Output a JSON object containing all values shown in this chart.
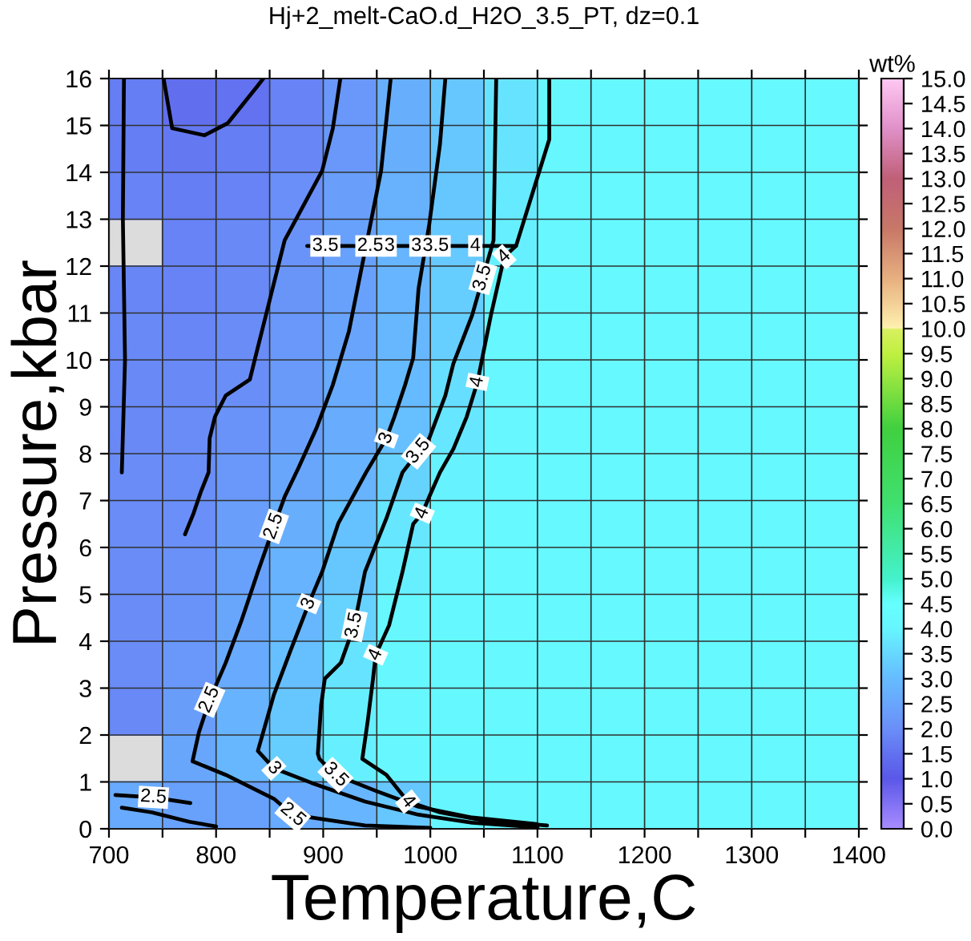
{
  "chart_data": {
    "type": "scatter",
    "title": "Hj+2_melt-CaO.d_H2O_3.5_PT, dz=0.1",
    "xlabel": "Temperature,C",
    "ylabel": "Pressure,kbar",
    "clabel": "wt%",
    "clim": [
      0,
      15
    ],
    "cticks": [
      {
        "value": 0,
        "label": "0.0"
      },
      0.5,
      {
        "value": 1,
        "label": "1.0"
      },
      1.5,
      {
        "value": 2,
        "label": "2.0"
      },
      2.5,
      {
        "value": 3,
        "label": "3.0"
      },
      3.5,
      {
        "value": 4,
        "label": "4.0"
      },
      4.5,
      {
        "value": 5,
        "label": "5.0"
      },
      5.5,
      {
        "value": 6,
        "label": "6.0"
      },
      6.5,
      {
        "value": 7,
        "label": "7.0"
      },
      7.5,
      {
        "value": 8,
        "label": "8.0"
      },
      8.5,
      {
        "value": 9,
        "label": "9.0"
      },
      9.5,
      {
        "value": 10,
        "label": "10.0"
      },
      10.5,
      {
        "value": 11,
        "label": "11.0"
      },
      11.5,
      {
        "value": 12,
        "label": "12.0"
      },
      12.5,
      {
        "value": 13,
        "label": "13.0"
      },
      13.5,
      {
        "value": 14,
        "label": "14.0"
      },
      14.5,
      {
        "value": 15,
        "label": "15.0"
      }
    ],
    "xlim": [
      700,
      1400
    ],
    "xticks": [
      700,
      {
        "value": 750,
        "label": null
      },
      800,
      {
        "value": 850,
        "label": null
      },
      900,
      {
        "value": 950,
        "label": null
      },
      1000,
      {
        "value": 1050,
        "label": null
      },
      1100,
      {
        "value": 1150,
        "label": null
      },
      1200,
      {
        "value": 1250,
        "label": null
      },
      1300,
      {
        "value": 1350,
        "label": null
      },
      1400
    ],
    "ylim": [
      0,
      16
    ],
    "yticks": [
      0,
      1,
      2,
      3,
      4,
      5,
      6,
      7,
      8,
      9,
      10,
      11,
      12,
      13,
      14,
      15,
      16
    ],
    "grid": true,
    "x": [
      725,
      775,
      825,
      875,
      925,
      975,
      1025,
      1075,
      1125,
      1175,
      1225,
      1275,
      1325,
      1375,
      725,
      775,
      825,
      875,
      925,
      975,
      1025,
      1075,
      1125,
      1175,
      1225,
      1275,
      1325,
      1375,
      725,
      775,
      825,
      875,
      925,
      975,
      1025,
      1075,
      1125,
      1175,
      1225,
      1275,
      1325,
      1375,
      775,
      825,
      875,
      925,
      975,
      1025,
      1075,
      1125,
      1175,
      1225,
      1275,
      1325,
      1375,
      725,
      775,
      825,
      875,
      925,
      975,
      1025,
      1075,
      1125,
      1175,
      1225,
      1275,
      1325,
      1375,
      725,
      775,
      825,
      875,
      925,
      975,
      1025,
      1075,
      1125,
      1175,
      1225,
      1275,
      1325,
      1375,
      725,
      775,
      825,
      875,
      925,
      975,
      1025,
      1075,
      1125,
      1175,
      1225,
      1275,
      1325,
      1375,
      725,
      775,
      825,
      875,
      925,
      975,
      1025,
      1075,
      1125,
      1175,
      1225,
      1275,
      1325,
      1375,
      725,
      775,
      825,
      875,
      925,
      975,
      1025,
      1075,
      1125,
      1175,
      1225,
      1275,
      1325,
      1375,
      725,
      775,
      825,
      875,
      925,
      975,
      1025,
      1075,
      1125,
      1175,
      1225,
      1275,
      1325,
      1375,
      725,
      775,
      825,
      875,
      925,
      975,
      1025,
      1075,
      1125,
      1175,
      1225,
      1275,
      1325,
      1375,
      725,
      775,
      825,
      875,
      925,
      975,
      1025,
      1075,
      1125,
      1175,
      1225,
      1275,
      1325,
      1375,
      725,
      775,
      825,
      875,
      925,
      975,
      1025,
      1075,
      1125,
      1175,
      1225,
      1275,
      1325,
      1375,
      725,
      775,
      825,
      875,
      925,
      975,
      1025,
      1075,
      1125,
      1175,
      1225,
      1275,
      1325,
      1375,
      775,
      825,
      875,
      925,
      975,
      1025,
      1075,
      1125,
      1175,
      1225,
      1275,
      1325,
      1375,
      725,
      775,
      825,
      875,
      925,
      975,
      1025,
      1075,
      1125,
      1175,
      1225,
      1275,
      1325,
      1375
    ],
    "values": [
      15.5,
      15.5,
      15.5,
      15.5,
      15.5,
      15.5,
      15.5,
      15.5,
      15.5,
      15.5,
      15.5,
      15.5,
      15.5,
      15.5,
      14.5,
      14.5,
      14.5,
      14.5,
      14.5,
      14.5,
      14.5,
      14.5,
      14.5,
      14.5,
      14.5,
      14.5,
      14.5,
      14.5,
      13.5,
      13.5,
      13.5,
      13.5,
      13.5,
      13.5,
      13.5,
      13.5,
      13.5,
      13.5,
      13.5,
      13.5,
      13.5,
      13.5,
      12.5,
      12.5,
      12.5,
      12.5,
      12.5,
      12.5,
      12.5,
      12.5,
      12.5,
      12.5,
      12.5,
      12.5,
      12.5,
      11.5,
      11.5,
      11.5,
      11.5,
      11.5,
      11.5,
      11.5,
      11.5,
      11.5,
      11.5,
      11.5,
      11.5,
      11.5,
      11.5,
      10.5,
      10.5,
      10.5,
      10.5,
      10.5,
      10.5,
      10.5,
      10.5,
      10.5,
      10.5,
      10.5,
      10.5,
      10.5,
      10.5,
      9.5,
      9.5,
      9.5,
      9.5,
      9.5,
      9.5,
      9.5,
      9.5,
      9.5,
      9.5,
      9.5,
      9.5,
      9.5,
      9.5,
      8.5,
      8.5,
      8.5,
      8.5,
      8.5,
      8.5,
      8.5,
      8.5,
      8.5,
      8.5,
      8.5,
      8.5,
      8.5,
      8.5,
      7.5,
      7.5,
      7.5,
      7.5,
      7.5,
      7.5,
      7.5,
      7.5,
      7.5,
      7.5,
      7.5,
      7.5,
      7.5,
      7.5,
      6.5,
      6.5,
      6.5,
      6.5,
      6.5,
      6.5,
      6.5,
      6.5,
      6.5,
      6.5,
      6.5,
      6.5,
      6.5,
      6.5,
      5.5,
      5.5,
      5.5,
      5.5,
      5.5,
      5.5,
      5.5,
      5.5,
      5.5,
      5.5,
      5.5,
      5.5,
      5.5,
      5.5,
      4.5,
      4.5,
      4.5,
      4.5,
      4.5,
      4.5,
      4.5,
      4.5,
      4.5,
      4.5,
      4.5,
      4.5,
      4.5,
      4.5,
      3.5,
      3.5,
      3.5,
      3.5,
      3.5,
      3.5,
      3.5,
      3.5,
      3.5,
      3.5,
      3.5,
      3.5,
      3.5,
      3.5,
      2.5,
      2.5,
      2.5,
      2.5,
      2.5,
      2.5,
      2.5,
      2.5,
      2.5,
      2.5,
      2.5,
      2.5,
      2.5,
      2.5,
      1.5,
      1.5,
      1.5,
      1.5,
      1.5,
      1.5,
      1.5,
      1.5,
      1.5,
      1.5,
      1.5,
      1.5,
      1.5,
      0.5,
      0.5,
      0.5,
      0.5,
      0.5,
      0.5,
      0.5,
      0.5,
      0.5,
      0.5,
      0.5,
      0.5,
      0.5,
      0.5
    ],
    "cvalues": [
      1.7,
      1.45,
      1.5,
      1.8,
      2.2,
      2.7,
      3.2,
      3.7,
      4.05,
      4.1,
      4.2,
      4.2,
      4.2,
      4.2,
      1.7,
      1.6,
      1.7,
      1.85,
      2.2,
      2.7,
      3.2,
      3.7,
      4.05,
      4.1,
      4.2,
      4.2,
      4.2,
      4.2,
      1.8,
      1.7,
      1.8,
      2.0,
      2.35,
      2.75,
      3.2,
      3.8,
      4.05,
      4.15,
      4.2,
      4.2,
      4.2,
      4.2,
      1.8,
      1.9,
      2.1,
      2.4,
      2.85,
      3.25,
      3.9,
      4.05,
      4.2,
      4.2,
      4.2,
      4.2,
      4.2,
      1.85,
      1.8,
      1.9,
      2.15,
      2.4,
      2.85,
      3.3,
      4.0,
      4.1,
      4.2,
      4.2,
      4.2,
      4.2,
      4.2,
      1.9,
      1.85,
      1.95,
      2.2,
      2.45,
      2.9,
      3.35,
      4.05,
      4.2,
      4.2,
      4.2,
      4.2,
      4.2,
      4.2,
      1.9,
      1.9,
      1.98,
      2.25,
      2.6,
      2.95,
      3.6,
      4.05,
      4.2,
      4.2,
      4.2,
      4.2,
      4.2,
      4.2,
      1.9,
      1.95,
      2.1,
      2.35,
      2.65,
      3.05,
      3.75,
      4.05,
      4.2,
      4.2,
      4.2,
      4.2,
      4.2,
      4.2,
      1.95,
      1.98,
      2.2,
      2.5,
      2.8,
      3.4,
      3.95,
      4.1,
      4.2,
      4.2,
      4.2,
      4.2,
      4.2,
      4.2,
      1.95,
      2.0,
      2.35,
      2.7,
      3.1,
      3.75,
      4.05,
      4.2,
      4.2,
      4.2,
      4.2,
      4.2,
      4.2,
      4.2,
      1.95,
      2.05,
      2.4,
      2.8,
      3.2,
      3.9,
      4.05,
      4.2,
      4.2,
      4.2,
      4.2,
      4.2,
      4.2,
      4.2,
      1.95,
      2.1,
      2.5,
      2.9,
      3.4,
      4.05,
      4.1,
      4.2,
      4.2,
      4.2,
      4.2,
      4.2,
      4.2,
      4.2,
      1.95,
      2.2,
      2.6,
      3.05,
      3.7,
      4.05,
      4.1,
      4.2,
      4.2,
      4.2,
      4.2,
      4.2,
      4.2,
      4.2,
      1.9,
      2.3,
      2.8,
      3.2,
      3.9,
      4.05,
      4.1,
      4.2,
      4.2,
      4.2,
      4.2,
      4.2,
      4.2,
      4.2,
      2.5,
      2.9,
      3.3,
      3.9,
      4.05,
      4.1,
      4.2,
      4.2,
      4.2,
      4.2,
      4.2,
      4.2,
      4.2,
      2.6,
      2.4,
      2.4,
      2.6,
      2.85,
      3.2,
      4.0,
      4.05,
      4.2,
      4.2,
      4.2,
      4.2,
      4.2,
      4.2
    ],
    "colors": [
      "#657ef3",
      "#616fef",
      "#6272f0",
      "#6783f5",
      "#6998fa",
      "#67affd",
      "#66c7ff",
      "#66e4ff",
      "#66f7ff",
      "#66f8ff",
      "#66faff",
      "#66faff",
      "#66faff",
      "#66faff",
      "#657ef3",
      "#6478f2",
      "#657ef3",
      "#6886f6",
      "#6998fa",
      "#67affd",
      "#66c7ff",
      "#66e4ff",
      "#66f7ff",
      "#66f8ff",
      "#66faff",
      "#66faff",
      "#66faff",
      "#66faff",
      "#6783f5",
      "#657ef3",
      "#6783f5",
      "#6a8ff8",
      "#699ffb",
      "#67b1fe",
      "#66c7ff",
      "#66eaff",
      "#66f7ff",
      "#66f9ff",
      "#66faff",
      "#66faff",
      "#66faff",
      "#66faff",
      "#6783f5",
      "#6889f6",
      "#6a94f9",
      "#68a1fb",
      "#67b5fe",
      "#66caff",
      "#66f0ff",
      "#66f7ff",
      "#66faff",
      "#66faff",
      "#66faff",
      "#66faff",
      "#66faff",
      "#6886f6",
      "#6783f5",
      "#6889f6",
      "#6996f9",
      "#68a1fb",
      "#67b5fe",
      "#66cdff",
      "#66f6ff",
      "#66f8ff",
      "#66faff",
      "#66faff",
      "#66faff",
      "#66faff",
      "#66faff",
      "#6889f6",
      "#6886f6",
      "#698cf7",
      "#6998fa",
      "#68a4fc",
      "#66b8fe",
      "#66d0ff",
      "#66f7ff",
      "#66faff",
      "#66faff",
      "#66faff",
      "#66faff",
      "#66faff",
      "#66faff",
      "#6889f6",
      "#6889f6",
      "#6a8ef8",
      "#699bfa",
      "#68aafd",
      "#66baff",
      "#66deff",
      "#66f7ff",
      "#66faff",
      "#66faff",
      "#66faff",
      "#66faff",
      "#66faff",
      "#66faff",
      "#6889f6",
      "#698cf7",
      "#6a94f9",
      "#699ffb",
      "#67adfd",
      "#66bfff",
      "#66e7ff",
      "#66f7ff",
      "#66faff",
      "#66faff",
      "#66faff",
      "#66faff",
      "#66faff",
      "#66faff",
      "#698cf7",
      "#6a8ef8",
      "#6998fa",
      "#68a6fc",
      "#67b3fe",
      "#66d2ff",
      "#66f3ff",
      "#66f8ff",
      "#66faff",
      "#66faff",
      "#66faff",
      "#66faff",
      "#66faff",
      "#66faff",
      "#698cf7",
      "#6a8ff8",
      "#699ffb",
      "#67affd",
      "#66c2ff",
      "#66e7ff",
      "#66f7ff",
      "#66faff",
      "#66faff",
      "#66faff",
      "#66faff",
      "#66faff",
      "#66faff",
      "#66faff",
      "#698cf7",
      "#6a91f8",
      "#68a1fb",
      "#67b3fe",
      "#66c7ff",
      "#66f0ff",
      "#66f7ff",
      "#66faff",
      "#66faff",
      "#66faff",
      "#66faff",
      "#66faff",
      "#66faff",
      "#66faff",
      "#698cf7",
      "#6a94f9",
      "#68a6fc",
      "#66b8fe",
      "#66d2ff",
      "#66f7ff",
      "#66f8ff",
      "#66faff",
      "#66faff",
      "#66faff",
      "#66faff",
      "#66faff",
      "#66faff",
      "#66faff",
      "#698cf7",
      "#6998fa",
      "#68aafd",
      "#66bfff",
      "#66e4ff",
      "#66f7ff",
      "#66f8ff",
      "#66faff",
      "#66faff",
      "#66faff",
      "#66faff",
      "#66faff",
      "#66faff",
      "#66faff",
      "#6889f6",
      "#699dfa",
      "#67b3fe",
      "#66c7ff",
      "#66f0ff",
      "#66f7ff",
      "#66f8ff",
      "#66faff",
      "#66faff",
      "#66faff",
      "#66faff",
      "#66faff",
      "#66faff",
      "#66faff",
      "#68a6fc",
      "#66b8fe",
      "#66cdff",
      "#66f0ff",
      "#66f7ff",
      "#66f8ff",
      "#66faff",
      "#66faff",
      "#66faff",
      "#66faff",
      "#66faff",
      "#66faff",
      "#66faff",
      "#68aafd",
      "#68a1fb",
      "#68a1fb",
      "#68aafd",
      "#67b5fe",
      "#66c7ff",
      "#66f6ff",
      "#66f7ff",
      "#66faff",
      "#66faff",
      "#66faff",
      "#66faff",
      "#66faff",
      "#66faff"
    ],
    "series": [
      {
        "type": "line",
        "color": "#000000",
        "x": [
          751,
          759,
          789,
          811,
          839,
          844
        ],
        "values": [
          16,
          14.94,
          14.79,
          15.05,
          15.85,
          16
        ]
      },
      {
        "type": "line",
        "color": "#000000",
        "x": [
          714,
          713,
          715,
          712
        ],
        "values": [
          16,
          13,
          10,
          7.6
        ]
      },
      {
        "type": "line",
        "color": "#000000",
        "x": [
          916,
          909,
          899,
          864,
          849,
          836.5,
          831.5,
          809,
          799,
          794,
          793,
          786,
          779,
          771
        ],
        "values": [
          16,
          14.94,
          14.03,
          12.55,
          11.18,
          10.04,
          9.58,
          9.24,
          8.79,
          8.33,
          7.6,
          7.2,
          6.73,
          6.28
        ]
      },
      {
        "type": "line",
        "color": "#000000",
        "x": [
          963,
          954,
          944,
          934,
          924,
          909,
          894,
          877,
          864,
          854,
          839,
          824,
          809,
          794,
          784,
          778,
          809,
          854,
          871.5,
          939,
          1000
        ],
        "values": [
          16,
          14.03,
          12.89,
          11.75,
          10.61,
          9.47,
          8.56,
          7.7,
          7.08,
          6.45,
          5.48,
          4.46,
          3.54,
          2.75,
          2.06,
          1.44,
          1.15,
          0.64,
          0.3,
          0.07,
          0.02
        ]
      },
      {
        "type": "line",
        "color": "#000000",
        "x": [
          1014,
          1009,
          999,
          989,
          984,
          976.5,
          966.5,
          959,
          940,
          914,
          899,
          886.5,
          869,
          854,
          839,
          854,
          889,
          939,
          989,
          1039,
          1100
        ],
        "values": [
          16,
          14.6,
          12.89,
          11.52,
          10.04,
          9.47,
          8.79,
          8.33,
          7.6,
          6.51,
          5.48,
          4.8,
          3.77,
          2.86,
          1.66,
          1.29,
          0.98,
          0.58,
          0.3,
          0.13,
          0.03
        ]
      },
      {
        "type": "line",
        "color": "#000000",
        "x": [
          1061.5,
          1059,
          1049,
          1039,
          1021.5,
          1014,
          999,
          989,
          974,
          959,
          939,
          929,
          916.5,
          901.5,
          898,
          895,
          896.5,
          911.5,
          949,
          989,
          1039,
          1099
        ],
        "values": [
          16,
          12.55,
          11.75,
          10.95,
          9.92,
          9.24,
          8.33,
          8.05,
          7.6,
          6.62,
          5.48,
          4.34,
          3.54,
          3.2,
          2.63,
          1.6,
          1.49,
          1.15,
          0.81,
          0.47,
          0.24,
          0.1
        ]
      },
      {
        "type": "line",
        "color": "#000000",
        "x": [
          1111,
          1111,
          1080,
          1069,
          1056.5,
          1044,
          1034,
          1021.5,
          1009,
          999,
          992.5,
          984,
          974,
          961.5,
          949,
          946.5,
          941.5,
          936.5,
          959,
          979,
          1009,
          1049,
          1109
        ],
        "values": [
          16,
          14.7,
          12.43,
          12.2,
          10.95,
          9.53,
          8.79,
          8.1,
          7.6,
          7.08,
          6.73,
          6.5,
          5.48,
          4.34,
          3.71,
          3.2,
          2.29,
          1.49,
          1.15,
          0.58,
          0.35,
          0.18,
          0.07
        ]
      },
      {
        "type": "line",
        "color": "#000000",
        "x": [
          885,
          1080
        ],
        "values": [
          12.43,
          12.43
        ]
      },
      {
        "type": "line",
        "color": "#000000",
        "x": [
          706,
          741.5,
          776
        ],
        "values": [
          0.72,
          0.67,
          0.55
        ]
      },
      {
        "type": "line",
        "color": "#000000",
        "x": [
          712,
          740,
          775,
          800
        ],
        "values": [
          0.45,
          0.35,
          0.15,
          0.05
        ]
      }
    ],
    "annotations": [
      {
        "text": "3.5",
        "x": 902,
        "y": 12.43
      },
      {
        "text": "2.5",
        "x": 944,
        "y": 12.43
      },
      {
        "text": "3",
        "x": 962,
        "y": 12.43
      },
      {
        "text": "3",
        "x": 987,
        "y": 12.43
      },
      {
        "text": "3.5",
        "x": 1005,
        "y": 12.43
      },
      {
        "text": "4",
        "x": 1042,
        "y": 12.43
      },
      {
        "text": "4",
        "x": 1069,
        "y": 12.2
      },
      {
        "text": "3.5",
        "x": 1049,
        "y": 11.75
      },
      {
        "text": "4",
        "x": 1044,
        "y": 9.53
      },
      {
        "text": "3",
        "x": 959,
        "y": 8.33
      },
      {
        "text": "3.5",
        "x": 989,
        "y": 8.05
      },
      {
        "text": "4",
        "x": 992.5,
        "y": 6.73
      },
      {
        "text": "2.5",
        "x": 854,
        "y": 6.45
      },
      {
        "text": "3",
        "x": 886.5,
        "y": 4.8
      },
      {
        "text": "3.5",
        "x": 929,
        "y": 4.34
      },
      {
        "text": "4",
        "x": 949,
        "y": 3.71
      },
      {
        "text": "2.5",
        "x": 794,
        "y": 2.75
      },
      {
        "text": "3",
        "x": 854,
        "y": 1.29
      },
      {
        "text": "3.5",
        "x": 911.5,
        "y": 1.15
      },
      {
        "text": "4",
        "x": 979,
        "y": 0.58
      },
      {
        "text": "2.5",
        "x": 741.5,
        "y": 0.67
      },
      {
        "text": "2.5",
        "x": 871.5,
        "y": 0.3
      }
    ]
  }
}
